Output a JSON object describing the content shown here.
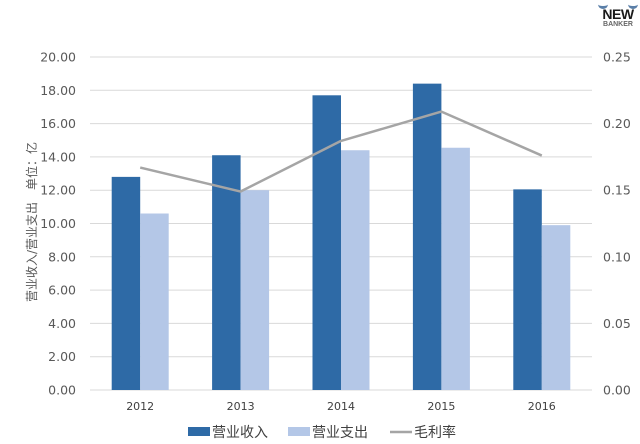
{
  "logo": {
    "line1": "NEW",
    "line2": "BANKER"
  },
  "chart_data": {
    "type": "bar",
    "title": "",
    "categories": [
      "2012",
      "2013",
      "2014",
      "2015",
      "2016"
    ],
    "series": [
      {
        "name": "营业收入",
        "type": "bar",
        "axis": "left",
        "color": "#2e6aa6",
        "values": [
          12.8,
          14.1,
          17.7,
          18.4,
          12.05
        ]
      },
      {
        "name": "营业支出",
        "type": "bar",
        "axis": "left",
        "color": "#b4c7e7",
        "values": [
          10.6,
          12.0,
          14.4,
          14.55,
          9.9
        ]
      },
      {
        "name": "毛利率",
        "type": "line",
        "axis": "right",
        "color": "#a5a5a5",
        "values": [
          0.167,
          0.149,
          0.187,
          0.209,
          0.176
        ]
      }
    ],
    "xlabel": "",
    "ylabel": "营业收入/营业支出　单位：亿",
    "ylim": [
      0,
      20
    ],
    "y_ticks": [
      "0.00",
      "2.00",
      "4.00",
      "6.00",
      "8.00",
      "10.00",
      "12.00",
      "14.00",
      "16.00",
      "18.00",
      "20.00"
    ],
    "y2lim": [
      0,
      0.25
    ],
    "y2_ticks": [
      "0.00",
      "0.05",
      "0.10",
      "0.15",
      "0.20",
      "0.25"
    ],
    "grid": true,
    "legend_position": "bottom"
  }
}
